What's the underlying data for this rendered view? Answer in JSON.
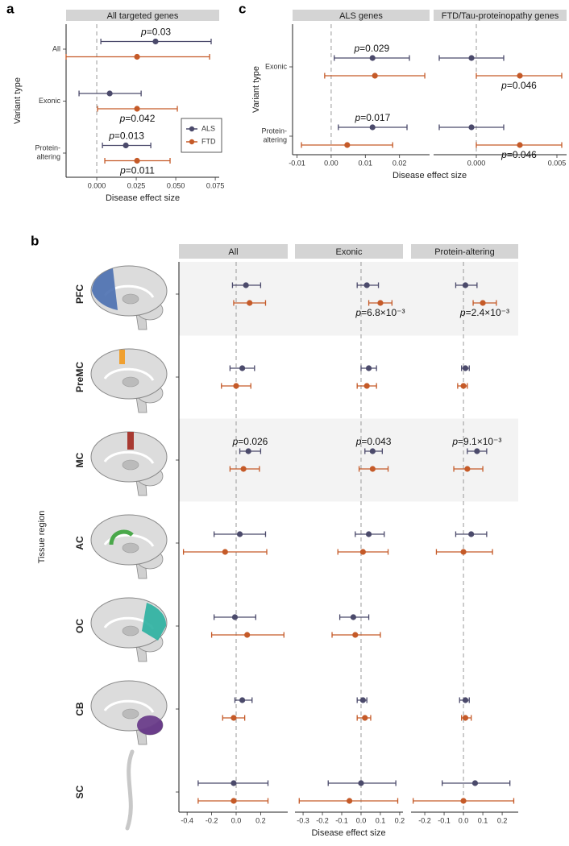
{
  "series": [
    {
      "name": "ALS",
      "color": "#4b4a6b"
    },
    {
      "name": "FTD",
      "color": "#c55a28"
    }
  ],
  "chart_data": [
    {
      "type": "forest",
      "label": "a",
      "ylabel": "Variant type",
      "xlabel": "Disease effect size",
      "legend": "lower right",
      "categories": [
        "All",
        "Exonic",
        "Protein-\naltering"
      ],
      "facets": [
        {
          "title": "All targeted genes",
          "xlim": [
            -0.0194,
            0.0775
          ],
          "xticks": [
            {
              "value": 0,
              "label": "0.000"
            },
            {
              "value": 0.025,
              "label": "0.025"
            },
            {
              "value": 0.05,
              "label": "0.050"
            },
            {
              "value": 0.075,
              "label": "0.075"
            }
          ],
          "series": [
            {
              "values": [
                0.0372,
                0.0082,
                0.0184
              ],
              "ci_low": [
                0.0026,
                -0.0112,
                0.0036
              ],
              "ci_high": [
                0.0724,
                0.0281,
                0.0342
              ]
            },
            {
              "values": [
                0.0255,
                0.0255,
                0.0255
              ],
              "ci_low": [
                -0.0194,
                0.0005,
                0.0051
              ],
              "ci_high": [
                0.0714,
                0.051,
                0.0464
              ]
            }
          ],
          "annotations": [
            {
              "text": "p=0.03",
              "category": 0,
              "series": 0
            },
            {
              "text": "p=0.042",
              "category": 1,
              "series": 1
            },
            {
              "text": "p=0.013",
              "category": 2,
              "series": 0
            },
            {
              "text": "p=0.011",
              "category": 2,
              "series": 1
            }
          ]
        }
      ]
    },
    {
      "type": "forest",
      "label": "c",
      "ylabel": "Variant type",
      "xlabel": "Disease effect size",
      "categories": [
        "Exonic",
        "Protein-\naltering"
      ],
      "facets": [
        {
          "title": "ALS genes",
          "xlim": [
            -0.0113,
            0.0288
          ],
          "xticks": [
            -0.01,
            {
              "value": 0,
              "label": "0.00"
            },
            0.01,
            0.02
          ],
          "series": [
            {
              "values": [
                0.0121,
                0.0121
              ],
              "ci_low": [
                0.0009,
                0.0021
              ],
              "ci_high": [
                0.0229,
                0.0222
              ]
            },
            {
              "values": [
                0.0128,
                0.0047
              ],
              "ci_low": [
                -0.0019,
                -0.0087
              ],
              "ci_high": [
                0.0274,
                0.018
              ]
            }
          ],
          "annotations": [
            {
              "text": "p=0.029",
              "category": 0,
              "series": 0
            },
            {
              "text": "p=0.017",
              "category": 1,
              "series": 0
            }
          ]
        },
        {
          "title": "FTD/Tau-proteinopathy genes",
          "xlim": [
            -0.00265,
            0.0056
          ],
          "xticks": [
            {
              "value": 0,
              "label": "0.000"
            },
            0.005
          ],
          "series": [
            {
              "values": [
                -0.0003,
                -0.0003
              ],
              "ci_low": [
                -0.0023,
                -0.0023
              ],
              "ci_high": [
                0.0017,
                0.0017
              ]
            },
            {
              "values": [
                0.0027,
                0.0027
              ],
              "ci_low": [
                0,
                0
              ],
              "ci_high": [
                0.0053,
                0.0053
              ]
            }
          ],
          "annotations": [
            {
              "text": "p=0.046",
              "category": 0,
              "series": 1
            },
            {
              "text": "p=0.046",
              "category": 1,
              "series": 1
            }
          ]
        }
      ]
    },
    {
      "type": "forest",
      "label": "b",
      "ylabel": "Tissue region",
      "xlabel": "Disease effect size",
      "highlight_rows": [
        0,
        2
      ],
      "categories": [
        "PFC",
        "PreMC",
        "MC",
        "AC",
        "OC",
        "CB",
        "SC"
      ],
      "category_colors": [
        "#4a6fb0",
        "#f0a030",
        "#a83a32",
        "#4aa84a",
        "#2ab0a0",
        "#6a3d8a",
        "#333333"
      ],
      "facets": [
        {
          "title": "All",
          "xlim": [
            -0.467,
            0.421
          ],
          "xticks": [
            -0.4,
            -0.2,
            {
              "value": 0,
              "label": "0.0"
            },
            0.2
          ],
          "series": [
            {
              "values": [
                0.08,
                0.05,
                0.1,
                0.03,
                -0.01,
                0.05,
                -0.02
              ],
              "ci_low": [
                -0.03,
                -0.05,
                0.03,
                -0.18,
                -0.18,
                -0.01,
                -0.31
              ],
              "ci_high": [
                0.2,
                0.15,
                0.2,
                0.24,
                0.16,
                0.13,
                0.26
              ]
            },
            {
              "values": [
                0.11,
                0,
                0.06,
                -0.09,
                0.09,
                -0.02,
                -0.02
              ],
              "ci_low": [
                -0.02,
                -0.12,
                -0.05,
                -0.43,
                -0.2,
                -0.11,
                -0.31
              ],
              "ci_high": [
                0.24,
                0.12,
                0.19,
                0.25,
                0.39,
                0.07,
                0.26
              ]
            }
          ],
          "annotations": [
            {
              "text": "p=0.026",
              "category": 2,
              "series": 0
            }
          ]
        },
        {
          "title": "Exonic",
          "xlim": [
            -0.342,
            0.217
          ],
          "xticks": [
            -0.3,
            -0.2,
            -0.1,
            {
              "value": 0,
              "label": "0.0"
            },
            0.1,
            0.2
          ],
          "series": [
            {
              "values": [
                0.03,
                0.04,
                0.06,
                0.04,
                -0.04,
                0.01,
                0
              ],
              "ci_low": [
                -0.02,
                0,
                0.02,
                -0.03,
                -0.11,
                -0.02,
                -0.17
              ],
              "ci_high": [
                0.09,
                0.08,
                0.11,
                0.12,
                0.04,
                0.03,
                0.18
              ]
            },
            {
              "values": [
                0.1,
                0.03,
                0.06,
                0.01,
                -0.03,
                0.02,
                -0.06
              ],
              "ci_low": [
                0.04,
                -0.02,
                -0.01,
                -0.12,
                -0.15,
                -0.02,
                -0.32
              ],
              "ci_high": [
                0.16,
                0.08,
                0.14,
                0.14,
                0.1,
                0.05,
                0.19
              ]
            }
          ],
          "annotations": [
            {
              "text": "p=6.8×10⁻³",
              "category": 0,
              "series": 1
            },
            {
              "text": "p=0.043",
              "category": 2,
              "series": 0
            }
          ]
        },
        {
          "title": "Protein-altering",
          "xlim": [
            -0.271,
            0.283
          ],
          "xticks": [
            -0.2,
            -0.1,
            {
              "value": 0,
              "label": "0.0"
            },
            0.1,
            0.2
          ],
          "series": [
            {
              "values": [
                0.01,
                0.01,
                0.07,
                0.04,
                null,
                0.01,
                0.06
              ],
              "ci_low": [
                -0.04,
                -0.01,
                0.02,
                -0.04,
                null,
                -0.02,
                -0.11
              ],
              "ci_high": [
                0.07,
                0.03,
                0.12,
                0.12,
                null,
                0.03,
                0.24
              ]
            },
            {
              "values": [
                0.1,
                0,
                0.02,
                0,
                null,
                0.01,
                0
              ],
              "ci_low": [
                0.05,
                -0.03,
                -0.05,
                -0.14,
                null,
                -0.01,
                -0.26
              ],
              "ci_high": [
                0.17,
                0.02,
                0.1,
                0.15,
                null,
                0.04,
                0.26
              ]
            }
          ],
          "annotations": [
            {
              "text": "p=2.4×10⁻³",
              "category": 0,
              "series": 1
            },
            {
              "text": "p=9.1×10⁻³",
              "category": 2,
              "series": 0
            }
          ]
        }
      ]
    }
  ]
}
